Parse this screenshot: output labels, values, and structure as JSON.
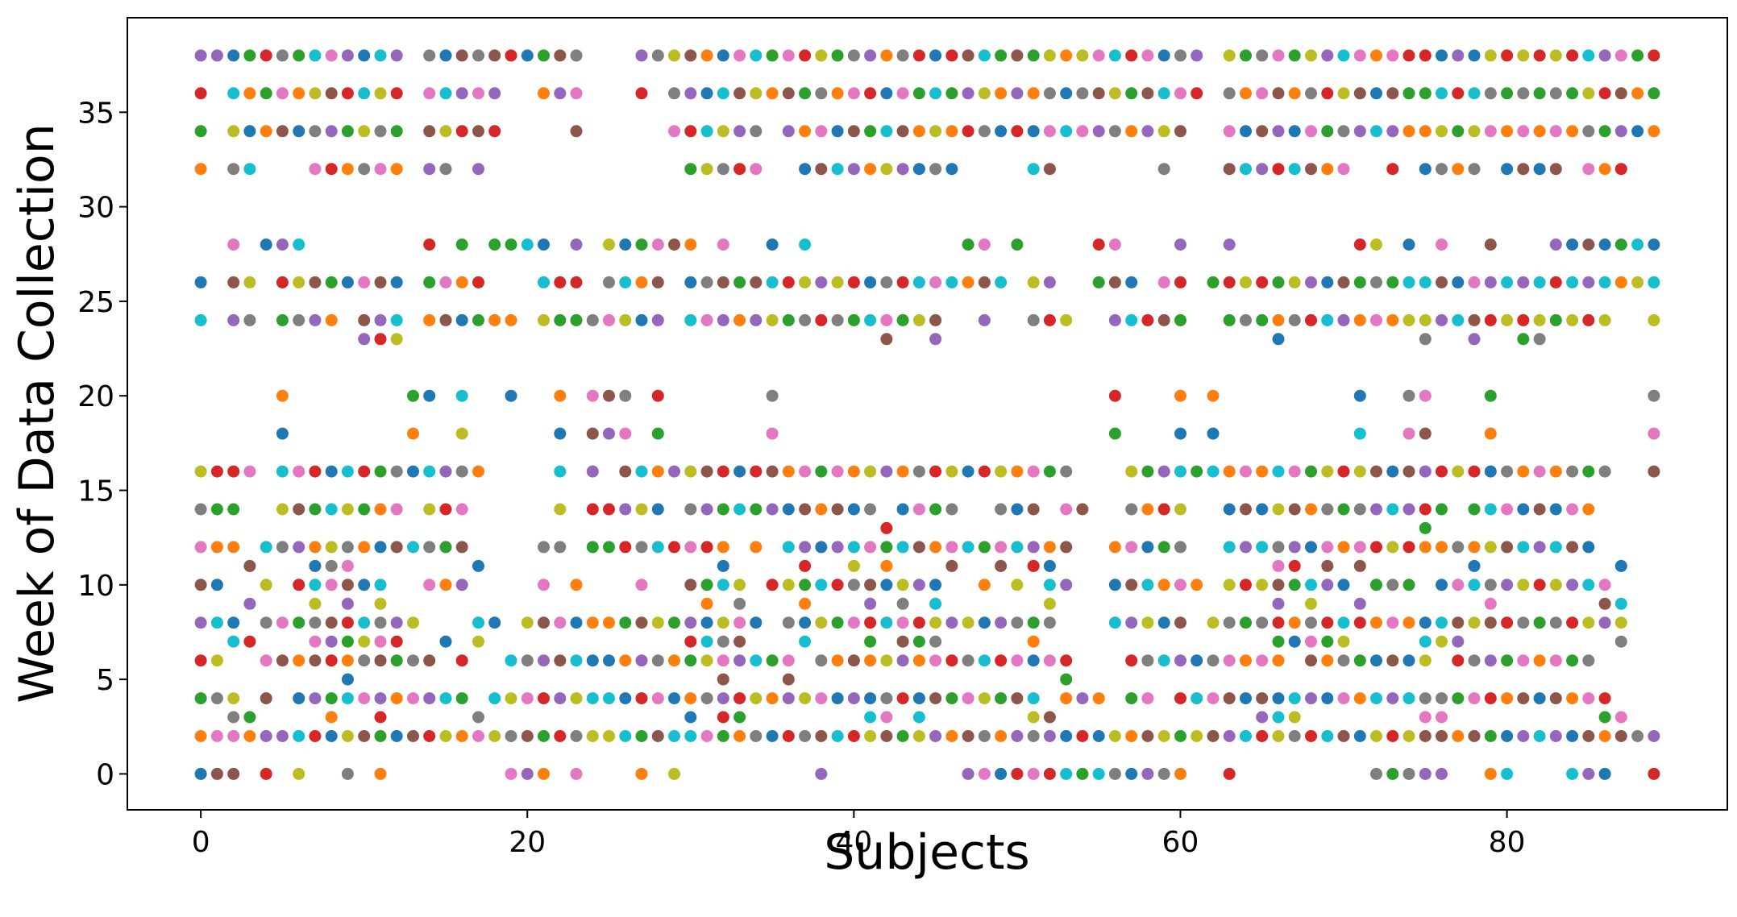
{
  "chart_data": {
    "type": "scatter",
    "title": "",
    "xlabel": "Subjects",
    "ylabel": "Week of Data Collection",
    "xlim": [
      -4.5,
      93.5
    ],
    "ylim": [
      -1.9,
      40.0
    ],
    "xticks": [
      0,
      20,
      40,
      60,
      80
    ],
    "yticks": [
      0,
      5,
      10,
      15,
      20,
      25,
      30,
      35
    ],
    "grid": false,
    "legend": "none",
    "palette": [
      "#1f77b4",
      "#ff7f0e",
      "#2ca02c",
      "#d62728",
      "#9467bd",
      "#8c564b",
      "#e377c2",
      "#7f7f7f",
      "#bcbd22",
      "#17becf"
    ],
    "n_subjects": 90,
    "weeks_per_subject": [
      [
        0,
        2,
        4,
        6,
        8,
        10,
        12,
        14,
        16,
        24,
        26,
        32,
        34,
        36,
        38
      ],
      [
        0,
        2,
        4,
        6,
        8,
        10,
        12,
        14,
        16,
        38
      ],
      [
        0,
        2,
        3,
        4,
        7,
        8,
        12,
        14,
        16,
        24,
        26,
        28,
        32,
        34,
        36,
        38
      ],
      [
        2,
        3,
        7,
        9,
        11,
        16,
        24,
        26,
        32,
        34,
        36,
        38
      ],
      [
        0,
        2,
        4,
        6,
        8,
        10,
        12,
        28,
        34,
        36,
        38
      ],
      [
        2,
        6,
        8,
        12,
        14,
        16,
        18,
        20,
        24,
        26,
        28,
        34,
        36,
        38
      ],
      [
        0,
        2,
        4,
        6,
        8,
        10,
        12,
        14,
        16,
        24,
        26,
        28,
        34,
        36,
        38
      ],
      [
        2,
        4,
        6,
        7,
        8,
        9,
        10,
        11,
        12,
        14,
        16,
        24,
        26,
        32,
        34,
        36,
        38
      ],
      [
        2,
        3,
        4,
        6,
        7,
        8,
        10,
        11,
        12,
        14,
        16,
        24,
        26,
        32,
        34,
        36,
        38
      ],
      [
        0,
        2,
        4,
        5,
        6,
        7,
        8,
        9,
        10,
        11,
        12,
        14,
        16,
        26,
        32,
        34,
        36,
        38
      ],
      [
        2,
        4,
        6,
        7,
        8,
        10,
        12,
        14,
        16,
        23,
        24,
        26,
        32,
        34,
        36,
        38
      ],
      [
        0,
        2,
        3,
        4,
        6,
        7,
        8,
        9,
        10,
        12,
        14,
        16,
        23,
        24,
        26,
        32,
        34,
        36,
        38
      ],
      [
        2,
        4,
        6,
        7,
        8,
        12,
        14,
        16,
        23,
        24,
        26,
        32,
        34,
        36,
        38
      ],
      [
        2,
        4,
        6,
        8,
        12,
        16,
        18,
        20
      ],
      [
        2,
        4,
        6,
        10,
        12,
        14,
        16,
        20,
        24,
        26,
        28,
        32,
        34,
        36,
        38
      ],
      [
        2,
        4,
        7,
        10,
        12,
        14,
        16,
        24,
        26,
        32,
        34,
        36,
        38
      ],
      [
        2,
        4,
        6,
        10,
        12,
        14,
        16,
        18,
        20,
        24,
        26,
        28,
        34,
        36,
        38
      ],
      [
        2,
        3,
        7,
        8,
        11,
        16,
        24,
        26,
        32,
        34,
        36,
        38
      ],
      [
        2,
        4,
        8,
        24,
        28,
        34,
        36,
        38
      ],
      [
        0,
        2,
        4,
        6,
        20,
        24,
        28,
        38
      ],
      [
        0,
        2,
        4,
        6,
        8,
        28,
        38
      ],
      [
        0,
        2,
        4,
        6,
        8,
        10,
        12,
        24,
        26,
        28,
        36,
        38
      ],
      [
        2,
        4,
        6,
        8,
        12,
        14,
        16,
        18,
        20,
        24,
        26,
        36,
        38
      ],
      [
        0,
        2,
        4,
        6,
        8,
        10,
        24,
        26,
        28,
        34,
        36,
        38
      ],
      [
        2,
        4,
        6,
        8,
        12,
        14,
        16,
        18,
        20,
        24
      ],
      [
        2,
        4,
        6,
        8,
        12,
        14,
        18,
        20,
        24,
        26,
        28
      ],
      [
        2,
        4,
        6,
        8,
        12,
        14,
        16,
        18,
        20,
        24,
        26,
        28
      ],
      [
        0,
        2,
        4,
        6,
        8,
        10,
        12,
        14,
        16,
        24,
        26,
        28,
        36,
        38
      ],
      [
        2,
        4,
        6,
        8,
        12,
        14,
        16,
        18,
        20,
        24,
        26,
        28,
        38
      ],
      [
        0,
        2,
        4,
        6,
        8,
        12,
        16,
        28,
        34,
        36,
        38
      ],
      [
        2,
        3,
        4,
        6,
        7,
        8,
        10,
        12,
        14,
        16,
        24,
        26,
        28,
        32,
        34,
        36,
        38
      ],
      [
        2,
        4,
        6,
        7,
        8,
        9,
        10,
        12,
        14,
        16,
        24,
        26,
        32,
        34,
        36,
        38
      ],
      [
        2,
        3,
        4,
        5,
        6,
        7,
        8,
        10,
        11,
        12,
        14,
        16,
        24,
        26,
        28,
        32,
        34,
        36,
        38
      ],
      [
        2,
        3,
        4,
        6,
        7,
        8,
        9,
        10,
        14,
        16,
        24,
        26,
        32,
        34,
        36,
        38
      ],
      [
        2,
        4,
        6,
        8,
        12,
        14,
        16,
        24,
        26,
        32,
        34,
        36,
        38
      ],
      [
        2,
        4,
        6,
        10,
        14,
        16,
        18,
        20,
        24,
        26,
        28,
        36,
        38
      ],
      [
        2,
        4,
        5,
        6,
        8,
        10,
        12,
        14,
        16,
        24,
        26,
        34,
        36,
        38
      ],
      [
        2,
        4,
        7,
        8,
        9,
        10,
        11,
        12,
        14,
        16,
        24,
        26,
        28,
        32,
        34,
        36,
        38
      ],
      [
        0,
        2,
        4,
        6,
        8,
        10,
        12,
        14,
        16,
        24,
        26,
        32,
        34,
        36,
        38
      ],
      [
        2,
        4,
        6,
        8,
        10,
        12,
        14,
        16,
        24,
        26,
        32,
        34,
        36,
        38
      ],
      [
        2,
        4,
        6,
        8,
        10,
        11,
        12,
        14,
        16,
        24,
        26,
        32,
        34,
        36,
        38
      ],
      [
        2,
        3,
        4,
        6,
        7,
        8,
        9,
        10,
        12,
        14,
        16,
        24,
        26,
        32,
        34,
        36,
        38
      ],
      [
        2,
        3,
        4,
        6,
        8,
        10,
        11,
        12,
        13,
        16,
        23,
        24,
        26,
        32,
        34,
        36,
        38
      ],
      [
        2,
        4,
        6,
        7,
        8,
        9,
        10,
        12,
        14,
        16,
        24,
        26,
        32,
        34,
        36,
        38
      ],
      [
        2,
        3,
        4,
        6,
        7,
        8,
        10,
        12,
        14,
        16,
        24,
        26,
        32,
        34,
        36,
        38
      ],
      [
        2,
        4,
        6,
        7,
        8,
        9,
        10,
        12,
        14,
        16,
        23,
        24,
        26,
        32,
        34,
        36,
        38
      ],
      [
        2,
        4,
        6,
        8,
        11,
        12,
        14,
        16,
        26,
        32,
        34,
        36,
        38
      ],
      [
        0,
        2,
        4,
        6,
        8,
        12,
        16,
        26,
        28,
        34,
        36,
        38
      ],
      [
        0,
        2,
        4,
        6,
        8,
        10,
        12,
        16,
        24,
        26,
        28,
        34,
        36,
        38
      ],
      [
        0,
        2,
        4,
        6,
        8,
        11,
        12,
        14,
        16,
        26,
        34,
        36,
        38
      ],
      [
        0,
        2,
        4,
        6,
        8,
        10,
        12,
        14,
        16,
        28,
        34,
        36,
        38
      ],
      [
        0,
        2,
        3,
        4,
        6,
        7,
        8,
        11,
        12,
        14,
        16,
        24,
        26,
        32,
        34,
        36,
        38
      ],
      [
        0,
        2,
        3,
        6,
        8,
        9,
        10,
        11,
        12,
        16,
        24,
        26,
        32,
        34,
        36,
        38
      ],
      [
        0,
        2,
        4,
        5,
        6,
        10,
        12,
        14,
        16,
        24,
        34,
        36,
        38
      ],
      [
        0,
        2,
        4,
        14,
        34,
        36,
        38
      ],
      [
        0,
        2,
        4,
        26,
        28,
        34,
        36,
        38
      ],
      [
        0,
        2,
        8,
        10,
        12,
        18,
        20,
        24,
        26,
        28,
        34,
        36,
        38
      ],
      [
        0,
        2,
        4,
        6,
        8,
        10,
        12,
        14,
        16,
        24,
        26,
        34,
        36,
        38
      ],
      [
        0,
        2,
        4,
        6,
        8,
        10,
        12,
        14,
        16,
        24,
        34,
        36,
        38
      ],
      [
        0,
        2,
        6,
        8,
        10,
        12,
        14,
        16,
        24,
        26,
        32,
        34,
        36,
        38
      ],
      [
        0,
        2,
        4,
        6,
        8,
        10,
        12,
        14,
        16,
        18,
        20,
        24,
        26,
        28,
        34,
        36,
        38
      ],
      [
        2,
        4,
        6,
        10,
        16,
        36,
        38
      ],
      [
        2,
        4,
        6,
        8,
        16,
        18,
        20,
        26
      ],
      [
        0,
        2,
        4,
        6,
        8,
        10,
        12,
        14,
        16,
        24,
        26,
        28,
        32,
        34,
        36,
        38
      ],
      [
        2,
        4,
        6,
        8,
        10,
        12,
        14,
        16,
        24,
        26,
        32,
        34,
        36,
        38
      ],
      [
        2,
        3,
        4,
        6,
        8,
        10,
        12,
        14,
        16,
        24,
        26,
        32,
        34,
        36,
        38
      ],
      [
        2,
        3,
        4,
        6,
        7,
        8,
        9,
        10,
        11,
        12,
        14,
        16,
        23,
        24,
        26,
        32,
        34,
        36,
        38
      ],
      [
        2,
        3,
        4,
        7,
        8,
        10,
        11,
        12,
        14,
        16,
        24,
        26,
        32,
        34,
        36,
        38
      ],
      [
        2,
        4,
        6,
        7,
        8,
        9,
        10,
        12,
        14,
        16,
        24,
        26,
        32,
        34,
        36,
        38
      ],
      [
        2,
        4,
        6,
        7,
        8,
        10,
        11,
        12,
        14,
        16,
        24,
        26,
        32,
        34,
        36,
        38
      ],
      [
        2,
        4,
        6,
        7,
        8,
        10,
        12,
        14,
        16,
        24,
        26,
        32,
        34,
        36,
        38
      ],
      [
        2,
        4,
        6,
        8,
        9,
        11,
        12,
        14,
        16,
        18,
        20,
        24,
        26,
        28,
        34,
        36,
        38
      ],
      [
        0,
        2,
        4,
        6,
        8,
        10,
        12,
        14,
        16,
        24,
        26,
        28,
        34,
        36,
        38
      ],
      [
        0,
        2,
        4,
        6,
        8,
        10,
        12,
        14,
        16,
        24,
        26,
        32,
        34,
        36,
        38
      ],
      [
        0,
        2,
        4,
        6,
        8,
        10,
        12,
        14,
        16,
        18,
        20,
        24,
        26,
        28,
        34,
        36,
        38
      ],
      [
        0,
        2,
        3,
        4,
        6,
        7,
        8,
        12,
        13,
        14,
        16,
        18,
        20,
        23,
        24,
        26,
        32,
        34,
        36,
        38
      ],
      [
        0,
        2,
        3,
        4,
        7,
        8,
        10,
        12,
        14,
        16,
        24,
        26,
        28,
        32,
        34,
        36,
        38
      ],
      [
        2,
        4,
        6,
        7,
        8,
        10,
        12,
        16,
        24,
        26,
        32,
        34,
        36,
        38
      ],
      [
        2,
        4,
        6,
        8,
        10,
        11,
        12,
        14,
        16,
        23,
        24,
        26,
        32,
        34,
        36,
        38
      ],
      [
        0,
        2,
        4,
        6,
        8,
        9,
        10,
        12,
        14,
        16,
        18,
        20,
        24,
        26,
        28,
        34,
        36,
        38
      ],
      [
        0,
        2,
        4,
        6,
        8,
        10,
        12,
        14,
        16,
        24,
        26,
        32,
        34,
        36,
        38
      ],
      [
        2,
        4,
        6,
        8,
        10,
        12,
        14,
        16,
        23,
        24,
        26,
        32,
        34,
        36,
        38
      ],
      [
        2,
        4,
        6,
        8,
        10,
        12,
        14,
        16,
        23,
        24,
        26,
        32,
        34,
        36,
        38
      ],
      [
        2,
        4,
        6,
        8,
        10,
        12,
        14,
        16,
        24,
        26,
        28,
        32,
        34,
        36,
        38
      ],
      [
        0,
        2,
        4,
        6,
        8,
        10,
        12,
        14,
        16,
        24,
        26,
        28,
        34,
        36,
        38
      ],
      [
        0,
        2,
        4,
        6,
        8,
        10,
        12,
        14,
        16,
        24,
        26,
        28,
        32,
        34,
        36,
        38
      ],
      [
        0,
        2,
        3,
        4,
        8,
        9,
        10,
        16,
        24,
        26,
        28,
        32,
        34,
        36,
        38
      ],
      [
        2,
        3,
        7,
        8,
        9,
        11,
        26,
        28,
        32,
        34,
        36,
        38
      ],
      [
        2,
        26,
        28,
        34,
        36,
        38
      ],
      [
        0,
        2,
        16,
        18,
        20,
        24,
        26,
        28,
        34,
        36,
        38
      ]
    ]
  }
}
